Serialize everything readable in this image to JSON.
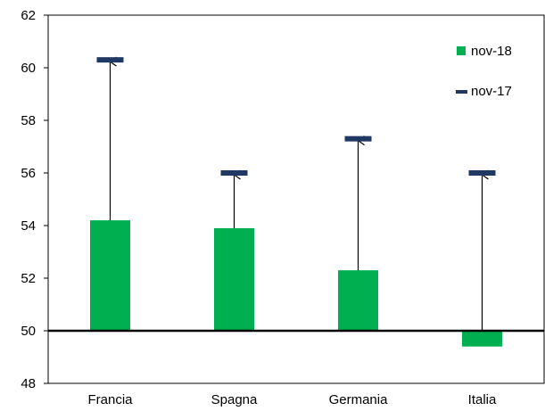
{
  "chart_data": {
    "type": "bar",
    "categories": [
      "Francia",
      "Spagna",
      "Germania",
      "Italia"
    ],
    "series": [
      {
        "name": "nov-18",
        "kind": "bar",
        "color": "#00b050",
        "values": [
          54.2,
          53.9,
          52.3,
          49.4
        ]
      },
      {
        "name": "nov-17",
        "kind": "marker",
        "color": "#1f3864",
        "values": [
          60.3,
          56.0,
          57.3,
          56.0
        ]
      }
    ],
    "baseline": 50,
    "ylim": [
      48,
      62
    ],
    "yticks": [
      48,
      50,
      52,
      54,
      56,
      58,
      60,
      62
    ],
    "title": "",
    "xlabel": "",
    "ylabel": "",
    "grid": false,
    "legend": "top-right"
  }
}
